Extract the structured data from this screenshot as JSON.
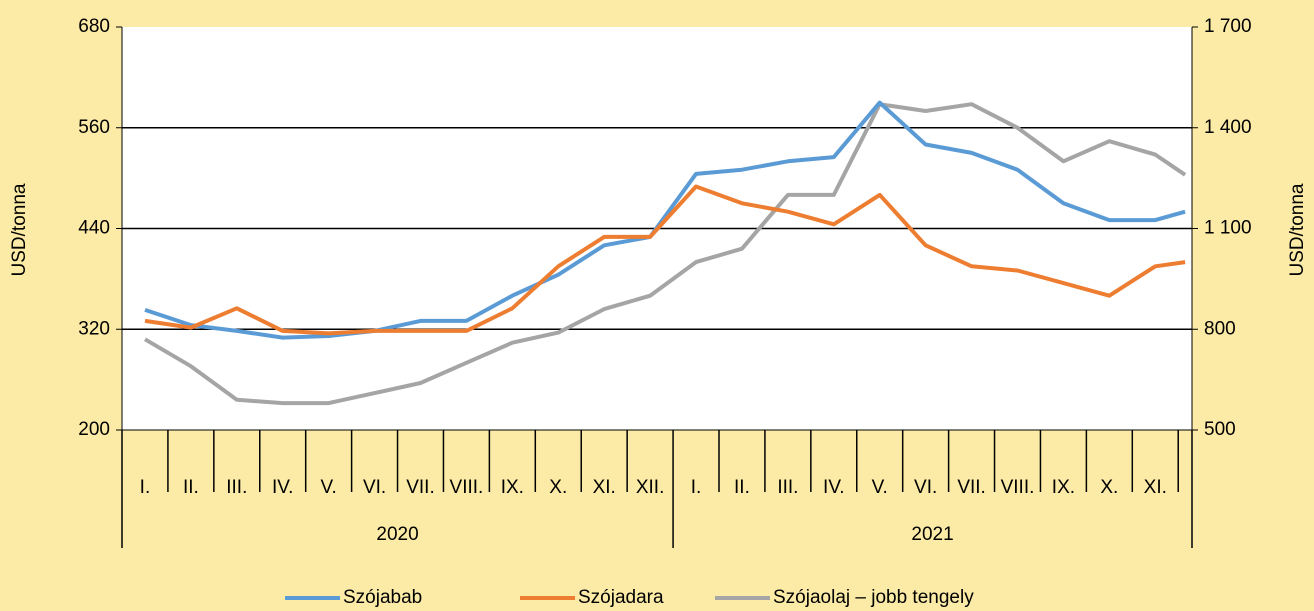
{
  "chart_data": {
    "type": "line",
    "ylabel": "USD/tonna",
    "y2label": "USD/tonna",
    "categories": [
      "I.",
      "II.",
      "III.",
      "IV.",
      "V.",
      "VI.",
      "VII.",
      "VIII.",
      "IX.",
      "X.",
      "XI.",
      "XII.",
      "I.",
      "II.",
      "III.",
      "IV.",
      "V.",
      "VI.",
      "VII.",
      "VIII.",
      "IX.",
      "X.",
      "XI.",
      null
    ],
    "years": [
      "2020",
      "2021"
    ],
    "series": [
      {
        "name": "Szójabab",
        "color": "#5b9bd5",
        "values": [
          343,
          325,
          318,
          310,
          312,
          318,
          330,
          330,
          360,
          385,
          420,
          430,
          505,
          510,
          520,
          525,
          590,
          540,
          530,
          510,
          470,
          450,
          450,
          460
        ]
      },
      {
        "name": "Szójadara",
        "color": "#ed7d31",
        "values": [
          330,
          322,
          345,
          318,
          315,
          318,
          318,
          318,
          345,
          395,
          430,
          430,
          490,
          470,
          460,
          445,
          480,
          420,
          395,
          390,
          375,
          360,
          395,
          400
        ]
      },
      {
        "name": "Szójaolaj – jobb tengely",
        "color": "#a5a5a5",
        "axis": "y2",
        "values": [
          770,
          690,
          590,
          580,
          580,
          610,
          640,
          700,
          760,
          790,
          860,
          900,
          1000,
          1040,
          1200,
          1200,
          1470,
          1450,
          1470,
          1400,
          1300,
          1360,
          1320,
          1260
        ]
      }
    ],
    "ylim": [
      200,
      680
    ],
    "yticks": [
      200,
      320,
      440,
      560,
      680
    ],
    "y2lim": [
      500,
      1700
    ],
    "y2ticks": [
      500,
      800,
      {
        "value": 1100,
        "label": "1 100"
      },
      {
        "value": 1400,
        "label": "1 400"
      },
      {
        "value": 1700,
        "label": "1 700"
      }
    ],
    "grid": true
  }
}
